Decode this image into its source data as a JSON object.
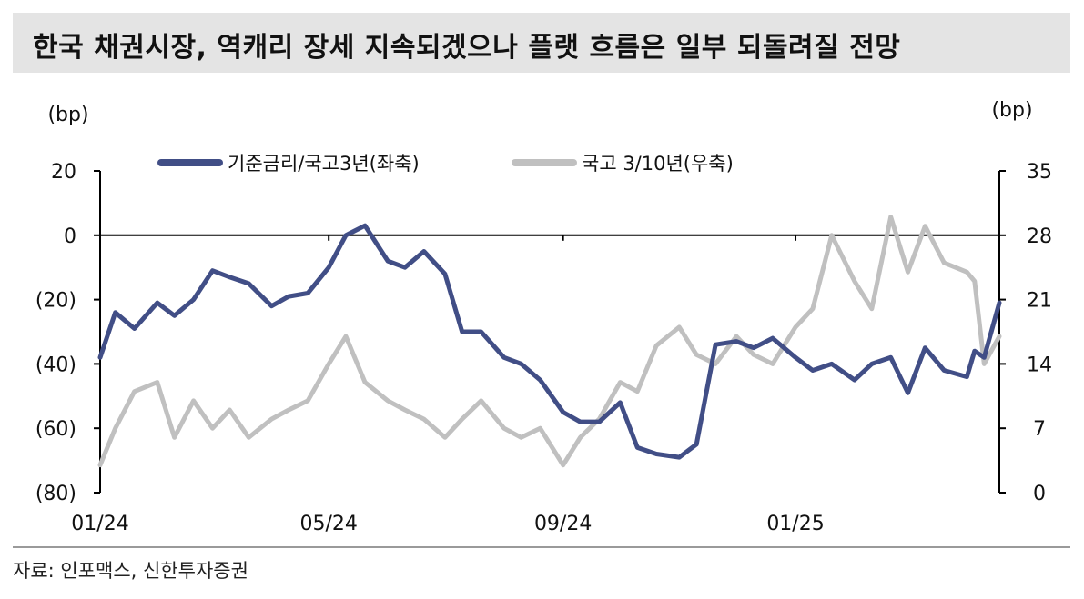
{
  "title": "한국 채권시장, 역캐리 장세 지속되겠으나 플랫 흐름은 일부 되돌려질 전망",
  "source": "자료: 인포맥스, 신한투자증권",
  "colors": {
    "series1": "#414e86",
    "series2": "#c0c0c0",
    "title_bg": "#e4e4e4"
  },
  "chart_data": {
    "type": "line",
    "left_axis": {
      "unit_label": "(bp)",
      "ylim": [
        -80,
        20
      ],
      "ticks": [
        20,
        0,
        -20,
        -40,
        -60,
        -80
      ],
      "tick_labels": [
        "20",
        "0",
        "(20)",
        "(40)",
        "(60)",
        "(80)"
      ]
    },
    "right_axis": {
      "unit_label": "(bp)",
      "ylim": [
        0,
        35
      ],
      "ticks": [
        35,
        28,
        21,
        14,
        7,
        0
      ],
      "tick_labels": [
        "35",
        "28",
        "21",
        "14",
        "7",
        "0"
      ]
    },
    "x_axis": {
      "tick_labels": [
        "01/24",
        "05/24",
        "09/24",
        "01/25"
      ],
      "tick_dates": [
        "2024-01-02",
        "2024-05-01",
        "2024-09-01",
        "2025-01-01"
      ],
      "range": [
        "2024-01-02",
        "2025-04-18"
      ]
    },
    "legend": {
      "placement": "top-center"
    },
    "series": [
      {
        "name": "기준금리/국고3년(좌축)",
        "axis": "left",
        "color": "#414e86",
        "x": [
          "2024-01-02",
          "2024-01-10",
          "2024-01-20",
          "2024-02-01",
          "2024-02-10",
          "2024-02-20",
          "2024-03-01",
          "2024-03-10",
          "2024-03-20",
          "2024-04-01",
          "2024-04-10",
          "2024-04-20",
          "2024-05-01",
          "2024-05-10",
          "2024-05-20",
          "2024-06-01",
          "2024-06-10",
          "2024-06-20",
          "2024-07-01",
          "2024-07-10",
          "2024-07-20",
          "2024-08-01",
          "2024-08-10",
          "2024-08-20",
          "2024-09-01",
          "2024-09-10",
          "2024-09-20",
          "2024-10-01",
          "2024-10-10",
          "2024-10-20",
          "2024-11-01",
          "2024-11-10",
          "2024-11-20",
          "2024-12-01",
          "2024-12-10",
          "2024-12-20",
          "2025-01-01",
          "2025-01-10",
          "2025-01-20",
          "2025-02-01",
          "2025-02-10",
          "2025-02-20",
          "2025-03-01",
          "2025-03-10",
          "2025-03-20",
          "2025-04-01",
          "2025-04-05",
          "2025-04-10",
          "2025-04-18"
        ],
        "values": [
          -38,
          -24,
          -29,
          -21,
          -25,
          -20,
          -11,
          -13,
          -15,
          -22,
          -19,
          -18,
          -10,
          0,
          3,
          -8,
          -10,
          -5,
          -12,
          -30,
          -30,
          -38,
          -40,
          -45,
          -55,
          -58,
          -58,
          -52,
          -66,
          -68,
          -69,
          -65,
          -34,
          -33,
          -35,
          -32,
          -38,
          -42,
          -40,
          -45,
          -40,
          -38,
          -49,
          -35,
          -42,
          -44,
          -36,
          -38,
          -21
        ]
      },
      {
        "name": "국고 3/10년(우축)",
        "axis": "right",
        "color": "#c0c0c0",
        "x": [
          "2024-01-02",
          "2024-01-10",
          "2024-01-20",
          "2024-02-01",
          "2024-02-10",
          "2024-02-20",
          "2024-03-01",
          "2024-03-10",
          "2024-03-20",
          "2024-04-01",
          "2024-04-10",
          "2024-04-20",
          "2024-05-01",
          "2024-05-10",
          "2024-05-20",
          "2024-06-01",
          "2024-06-10",
          "2024-06-20",
          "2024-07-01",
          "2024-07-10",
          "2024-07-20",
          "2024-08-01",
          "2024-08-10",
          "2024-08-20",
          "2024-09-01",
          "2024-09-10",
          "2024-09-20",
          "2024-10-01",
          "2024-10-10",
          "2024-10-20",
          "2024-11-01",
          "2024-11-10",
          "2024-11-20",
          "2024-12-01",
          "2024-12-10",
          "2024-12-20",
          "2025-01-01",
          "2025-01-10",
          "2025-01-20",
          "2025-02-01",
          "2025-02-10",
          "2025-02-20",
          "2025-03-01",
          "2025-03-10",
          "2025-03-20",
          "2025-04-01",
          "2025-04-05",
          "2025-04-10",
          "2025-04-18"
        ],
        "values": [
          3,
          7,
          11,
          12,
          6,
          10,
          7,
          9,
          6,
          8,
          9,
          10,
          14,
          17,
          12,
          10,
          9,
          8,
          6,
          8,
          10,
          7,
          6,
          7,
          3,
          6,
          8,
          12,
          11,
          16,
          18,
          15,
          14,
          17,
          15,
          14,
          18,
          20,
          28,
          23,
          20,
          30,
          24,
          29,
          25,
          24,
          23,
          14,
          17
        ]
      }
    ]
  }
}
